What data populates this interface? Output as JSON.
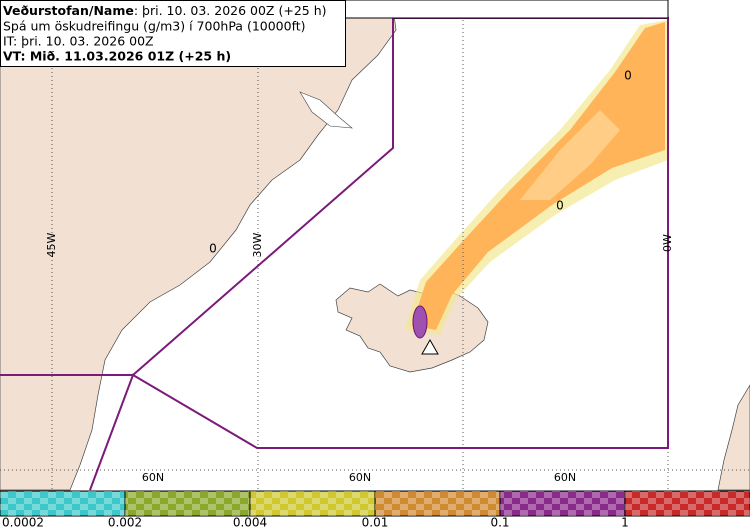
{
  "header": {
    "agency": "Veðurstofan/Name",
    "issued": ": þri. 10. 03. 2026 00Z (+25 h)",
    "product": "Spá um öskudreifingu (g/m3) í 700hPa (10000ft)",
    "analysis": "IT: þri. 10. 03. 2026 00Z",
    "valid": "VT: Mið. 11.03.2026 01Z (+25 h)"
  },
  "map": {
    "longitude_labels": [
      "45W",
      "30W",
      "0W"
    ],
    "latitude_labels": [
      "60N",
      "60N",
      "60N"
    ],
    "markers": [
      "0",
      "0",
      "0"
    ]
  },
  "legend": {
    "labels": [
      "0.0002",
      "0.002",
      "0.004",
      "0.01",
      "0.1",
      "1"
    ],
    "colors": [
      "#3cc8c8",
      "#8aa82a",
      "#d0c830",
      "#d08a30",
      "#8a2a8a",
      "#c82a2a"
    ]
  }
}
